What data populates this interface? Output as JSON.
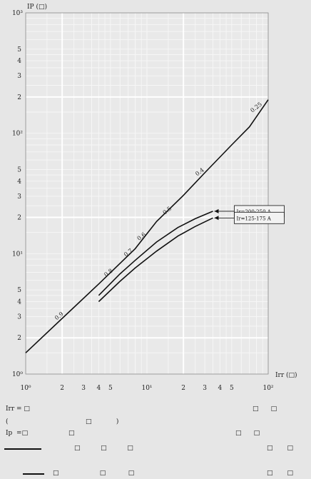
{
  "chart_data": {
    "type": "line",
    "xscale": "log",
    "yscale": "log",
    "xlim": [
      1,
      100
    ],
    "ylim": [
      1,
      1000
    ],
    "y_axis_label": "IP (□)",
    "x_axis_label": "Irr (□)",
    "x_major_ticks": [
      {
        "value": 1,
        "label": "10⁰"
      },
      {
        "value": 10,
        "label": "10¹"
      },
      {
        "value": 100,
        "label": "10²"
      }
    ],
    "x_minor_ticks": [
      {
        "value": 2,
        "label": "2"
      },
      {
        "value": 3,
        "label": "3"
      },
      {
        "value": 4,
        "label": "4"
      },
      {
        "value": 5,
        "label": "5"
      },
      {
        "value": 20,
        "label": "2"
      },
      {
        "value": 30,
        "label": "3"
      },
      {
        "value": 40,
        "label": "4"
      },
      {
        "value": 50,
        "label": "5"
      }
    ],
    "y_major_ticks": [
      {
        "value": 1,
        "label": "10⁰"
      },
      {
        "value": 10,
        "label": "10¹"
      },
      {
        "value": 100,
        "label": "10²"
      },
      {
        "value": 1000,
        "label": "10³"
      }
    ],
    "y_minor_ticks": [
      {
        "value": 2,
        "label": "2"
      },
      {
        "value": 3,
        "label": "3"
      },
      {
        "value": 4,
        "label": "4"
      },
      {
        "value": 5,
        "label": "5"
      },
      {
        "value": 20,
        "label": "2"
      },
      {
        "value": 30,
        "label": "3"
      },
      {
        "value": 40,
        "label": "4"
      },
      {
        "value": 50,
        "label": "5"
      },
      {
        "value": 200,
        "label": "2"
      },
      {
        "value": 300,
        "label": "3"
      },
      {
        "value": 400,
        "label": "4"
      },
      {
        "value": 500,
        "label": "5"
      }
    ],
    "grid": true,
    "series": [
      {
        "points": [
          [
            1,
            1.5
          ],
          [
            2,
            2.9
          ],
          [
            4,
            5.6
          ],
          [
            8,
            11.0
          ],
          [
            12,
            18.5
          ],
          [
            20,
            30.5
          ],
          [
            30,
            47
          ],
          [
            50,
            80
          ],
          [
            70,
            113
          ],
          [
            100,
            190
          ]
        ],
        "labels": [
          {
            "text": "0.9",
            "x": 1.8,
            "y": 2.8
          },
          {
            "text": "0.8",
            "x": 4.6,
            "y": 6.4
          },
          {
            "text": "0.7",
            "x": 6.7,
            "y": 9.4
          },
          {
            "text": "0.6",
            "x": 8.6,
            "y": 12.8
          },
          {
            "text": "0.5",
            "x": 14,
            "y": 21
          },
          {
            "text": "0.4",
            "x": 26,
            "y": 44
          },
          {
            "text": "0.25",
            "x": 74,
            "y": 148
          }
        ]
      },
      {
        "points": [
          [
            4,
            4.5
          ],
          [
            6,
            6.8
          ],
          [
            8,
            8.8
          ],
          [
            12,
            12.5
          ],
          [
            18,
            16.5
          ],
          [
            25,
            19.5
          ],
          [
            35,
            22.5
          ]
        ],
        "label": "Ir=200-250 A"
      },
      {
        "points": [
          [
            4,
            4.0
          ],
          [
            6,
            5.9
          ],
          [
            8,
            7.6
          ],
          [
            12,
            10.5
          ],
          [
            18,
            14.0
          ],
          [
            25,
            16.8
          ],
          [
            35,
            19.8
          ]
        ],
        "label": "Ir=125-175 A"
      }
    ]
  },
  "notes": {
    "line1_label": "Irr = □",
    "line1_tail": "□      □",
    "line2_open": "(",
    "line2_mid": "□            )",
    "line3_label": "Ip  =□",
    "line3_mid": "□",
    "line3_tail": "□      □",
    "line4_mid": "□          □          □",
    "line4_tail": "□       □",
    "line5_mid": "□                    □           □",
    "line5_tail": "□       □"
  }
}
